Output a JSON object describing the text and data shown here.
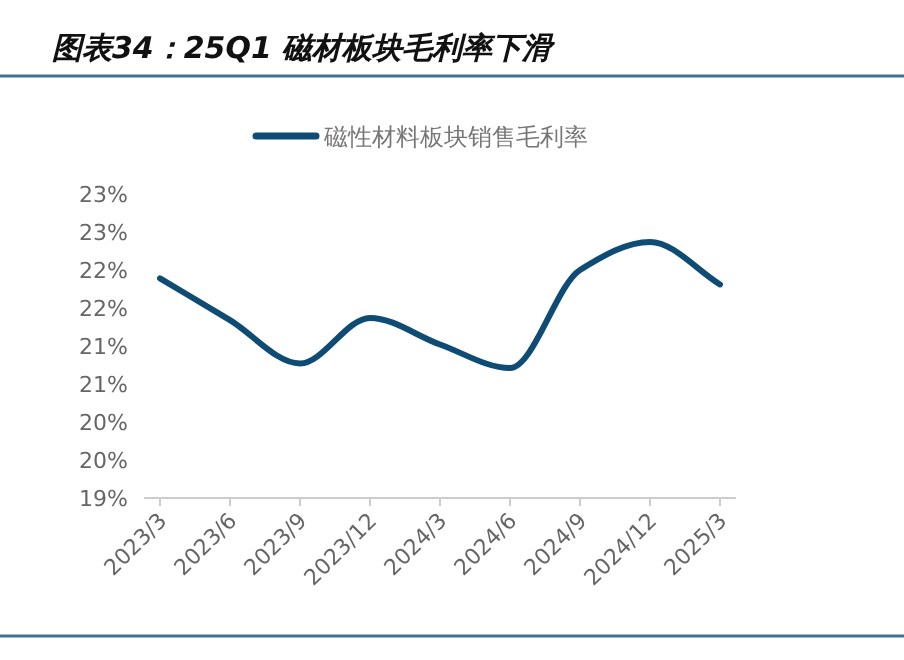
{
  "chart_data": {
    "type": "line",
    "title": "图表34：25Q1 磁材板块毛利率下滑",
    "categories": [
      "2023/3",
      "2023/6",
      "2023/9",
      "2023/12",
      "2024/3",
      "2024/6",
      "2024/9",
      "2024/12",
      "2025/3"
    ],
    "series": [
      {
        "name": "磁性材料板块销售毛利率",
        "color": "#0f4c75",
        "values": [
          21.89,
          21.34,
          20.77,
          21.37,
          21.02,
          20.71,
          22.0,
          22.37,
          21.81
        ]
      }
    ],
    "ylim": [
      19,
      23
    ],
    "yticks": [
      {
        "value": 19,
        "label": "19%"
      },
      {
        "value": 19.5,
        "label": "20%"
      },
      {
        "value": 20,
        "label": "20%"
      },
      {
        "value": 20.5,
        "label": "21%"
      },
      {
        "value": 21,
        "label": "21%"
      },
      {
        "value": 21.5,
        "label": "22%"
      },
      {
        "value": 22,
        "label": "22%"
      },
      {
        "value": 22.5,
        "label": "23%"
      },
      {
        "value": 23,
        "label": "23%"
      }
    ],
    "legend": "top",
    "grid": false,
    "marker": "none",
    "line_style": "solid"
  }
}
